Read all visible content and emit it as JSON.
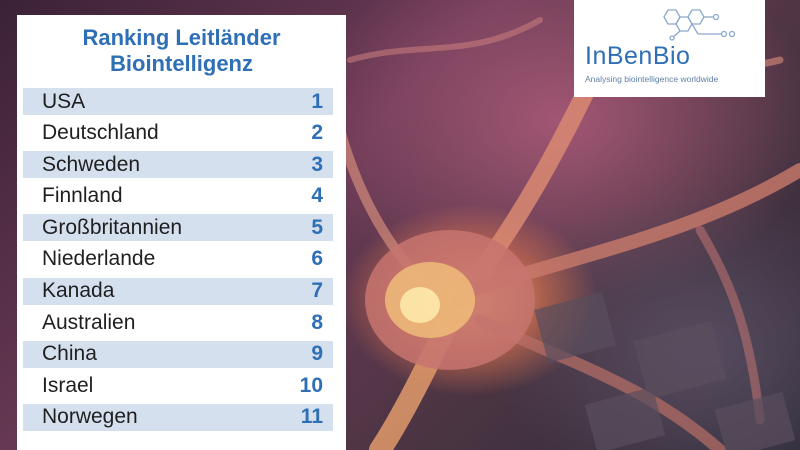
{
  "panel": {
    "title_line1": "Ranking Leitländer",
    "title_line2": "Biointelligenz",
    "rows": [
      {
        "country": "USA",
        "rank": "1"
      },
      {
        "country": "Deutschland",
        "rank": "2"
      },
      {
        "country": "Schweden",
        "rank": "3"
      },
      {
        "country": "Finnland",
        "rank": "4"
      },
      {
        "country": "Großbritannien",
        "rank": "5"
      },
      {
        "country": "Niederlande",
        "rank": "6"
      },
      {
        "country": "Kanada",
        "rank": "7"
      },
      {
        "country": "Australien",
        "rank": "8"
      },
      {
        "country": "China",
        "rank": "9"
      },
      {
        "country": "Israel",
        "rank": "10"
      },
      {
        "country": "Norwegen",
        "rank": "11"
      }
    ]
  },
  "logo": {
    "name": "InBenBio",
    "tagline": "Analysing biointelligence worldwide"
  },
  "colors": {
    "accent": "#2f6fb6",
    "row_stripe": "#d5e0ee"
  },
  "icons": {
    "logo_graphic": "hexagon-molecule-icon",
    "background": "neuron-illustration"
  }
}
